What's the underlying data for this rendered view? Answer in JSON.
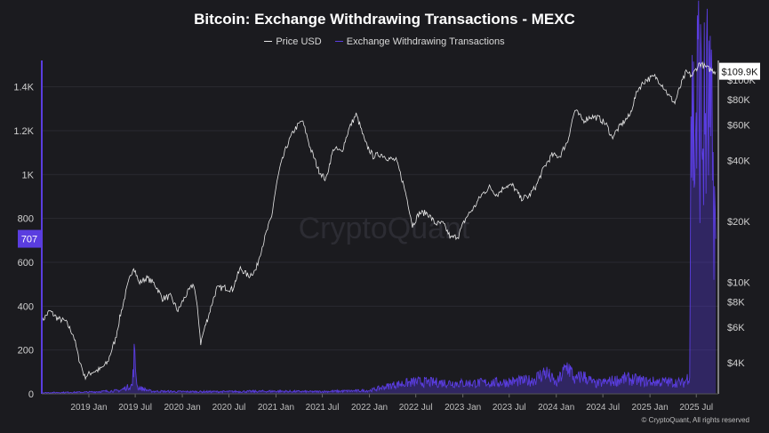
{
  "chart_data": {
    "type": "line",
    "title": "Bitcoin: Exchange Withdrawing Transactions - MEXC",
    "watermark": "CryptoQuant",
    "copyright": "© CryptoQuant, All rights reserved",
    "legend": {
      "placement": "top-center"
    },
    "grid": true,
    "colors": {
      "price": "#e8e8e8",
      "transactions": "#5a3de0",
      "background": "#1b1b1f"
    },
    "x_ticks": [
      "2019 Jan",
      "2019 Jul",
      "2020 Jan",
      "2020 Jul",
      "2021 Jan",
      "2021 Jul",
      "2022 Jan",
      "2022 Jul",
      "2023 Jan",
      "2023 Jul",
      "2024 Jan",
      "2024 Jul",
      "2025 Jan",
      "2025 Jul"
    ],
    "left_axis": {
      "label": "",
      "ylim": [
        0,
        1520
      ],
      "ticks": [
        "0",
        "200",
        "400",
        "600",
        "800",
        "1K",
        "1.2K",
        "1.4K"
      ],
      "tick_values": [
        0,
        200,
        400,
        600,
        800,
        1000,
        1200,
        1400
      ]
    },
    "right_axis": {
      "label": "",
      "scale": "log",
      "ylim": [
        2800,
        125000
      ],
      "ticks": [
        "$4K",
        "$6K",
        "$8K",
        "$10K",
        "$20K",
        "$40K",
        "$60K",
        "$80K",
        "$100K"
      ],
      "tick_values": [
        4000,
        6000,
        8000,
        10000,
        20000,
        40000,
        60000,
        80000,
        100000
      ]
    },
    "current_labels": {
      "transactions": "707",
      "price": "$109.9K"
    },
    "series": [
      {
        "name": "Price USD",
        "axis": "right",
        "x": [
          "2018-07-01",
          "2018-08-01",
          "2018-09-01",
          "2018-10-01",
          "2018-11-01",
          "2018-11-20",
          "2018-12-15",
          "2019-01-15",
          "2019-02-15",
          "2019-03-15",
          "2019-04-15",
          "2019-05-15",
          "2019-06-25",
          "2019-07-15",
          "2019-08-15",
          "2019-09-15",
          "2019-10-15",
          "2019-11-15",
          "2019-12-15",
          "2020-01-15",
          "2020-02-15",
          "2020-03-13",
          "2020-04-15",
          "2020-05-15",
          "2020-06-15",
          "2020-07-15",
          "2020-08-15",
          "2020-09-15",
          "2020-10-15",
          "2020-11-15",
          "2020-12-15",
          "2021-01-15",
          "2021-02-15",
          "2021-03-15",
          "2021-04-13",
          "2021-05-15",
          "2021-06-15",
          "2021-07-15",
          "2021-08-15",
          "2021-09-15",
          "2021-10-15",
          "2021-11-10",
          "2021-12-15",
          "2022-01-15",
          "2022-02-15",
          "2022-03-15",
          "2022-04-15",
          "2022-05-15",
          "2022-06-18",
          "2022-07-15",
          "2022-08-15",
          "2022-09-15",
          "2022-10-15",
          "2022-11-15",
          "2022-12-15",
          "2023-01-15",
          "2023-02-15",
          "2023-03-15",
          "2023-04-15",
          "2023-05-15",
          "2023-06-15",
          "2023-07-15",
          "2023-08-15",
          "2023-09-15",
          "2023-10-15",
          "2023-11-15",
          "2023-12-15",
          "2024-01-15",
          "2024-02-15",
          "2024-03-14",
          "2024-04-15",
          "2024-05-15",
          "2024-06-15",
          "2024-07-15",
          "2024-08-05",
          "2024-09-15",
          "2024-10-15",
          "2024-11-15",
          "2024-12-15",
          "2025-01-20",
          "2025-02-15",
          "2025-03-15",
          "2025-04-08",
          "2025-05-22",
          "2025-06-15",
          "2025-07-14",
          "2025-08-15",
          "2025-09-15"
        ],
        "values": [
          6400,
          7200,
          6600,
          6400,
          5500,
          4300,
          3400,
          3600,
          3700,
          4000,
          5200,
          7800,
          12000,
          9900,
          10500,
          9800,
          8300,
          8500,
          7200,
          8600,
          9800,
          5000,
          7000,
          9300,
          9400,
          9200,
          11700,
          10700,
          11500,
          16000,
          21000,
          36000,
          48000,
          57000,
          63000,
          46000,
          36000,
          32000,
          46000,
          44000,
          58000,
          67500,
          49000,
          42000,
          43000,
          41000,
          40000,
          30000,
          19000,
          22000,
          22000,
          19500,
          19500,
          16500,
          17000,
          21000,
          23500,
          27000,
          29500,
          27000,
          30000,
          30000,
          26000,
          26500,
          30000,
          37000,
          42500,
          42000,
          50000,
          71000,
          63000,
          66000,
          65000,
          60000,
          52000,
          61000,
          67000,
          90000,
          100000,
          104000,
          96000,
          84000,
          77000,
          109000,
          105000,
          121000,
          114000,
          110000
        ]
      },
      {
        "name": "Exchange Withdrawing Transactions",
        "axis": "left",
        "x": [
          "2018-07-01",
          "2018-12-31",
          "2019-05-01",
          "2019-06-20",
          "2019-06-27",
          "2019-07-10",
          "2019-09-01",
          "2020-01-01",
          "2020-06-01",
          "2020-12-31",
          "2021-06-01",
          "2021-12-31",
          "2022-04-01",
          "2022-07-01",
          "2022-12-31",
          "2023-06-01",
          "2023-10-01",
          "2023-11-20",
          "2024-01-01",
          "2024-02-15",
          "2024-03-15",
          "2024-04-10",
          "2024-06-01",
          "2024-10-01",
          "2024-12-20",
          "2025-03-01",
          "2025-05-15",
          "2025-06-05",
          "2025-06-10",
          "2025-06-25",
          "2025-07-10",
          "2025-07-25",
          "2025-08-15",
          "2025-09-05",
          "2025-09-15"
        ],
        "values": [
          5,
          8,
          15,
          40,
          175,
          30,
          12,
          10,
          10,
          12,
          10,
          15,
          40,
          55,
          48,
          52,
          62,
          100,
          45,
          130,
          60,
          85,
          45,
          70,
          55,
          55,
          50,
          90,
          1310,
          1150,
          1400,
          1180,
          1300,
          1000,
          707
        ]
      }
    ]
  }
}
